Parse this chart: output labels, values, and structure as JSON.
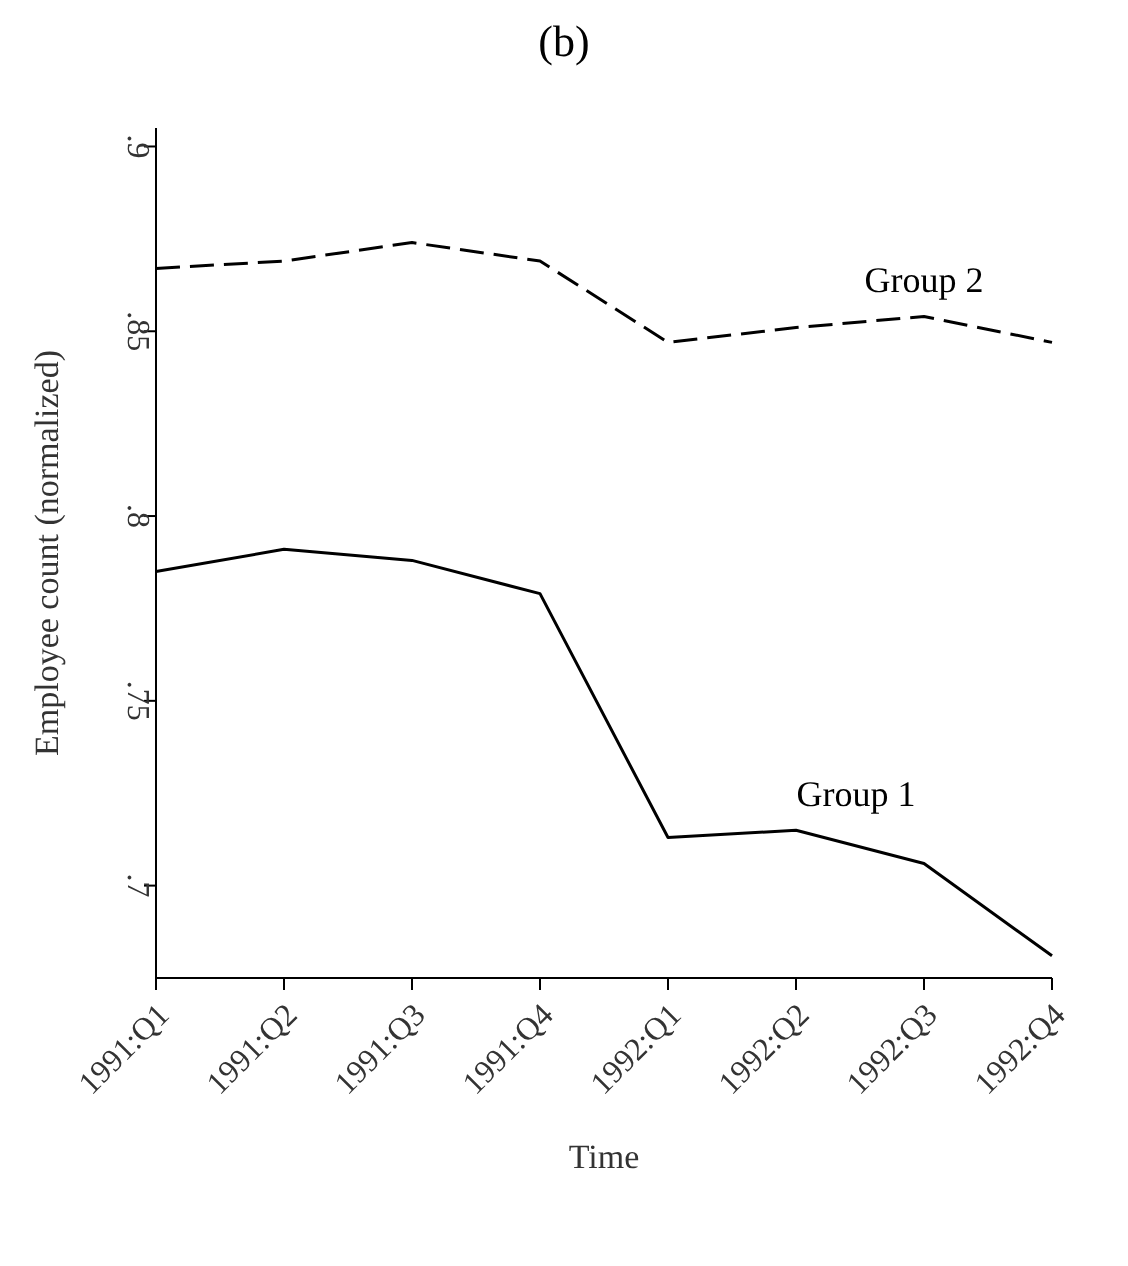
{
  "chart_data": {
    "type": "line",
    "title": "(b)",
    "xlabel": "Time",
    "ylabel": "Employee count (normalized)",
    "categories": [
      "1991:Q1",
      "1991:Q2",
      "1991:Q3",
      "1991:Q4",
      "1992:Q1",
      "1992:Q2",
      "1992:Q3",
      "1992:Q4"
    ],
    "series": [
      {
        "name": "Group 2",
        "color": "#000000",
        "line_style": "dashed",
        "values": [
          0.867,
          0.869,
          0.874,
          0.869,
          0.847,
          0.851,
          0.854,
          0.847
        ]
      },
      {
        "name": "Group 1",
        "color": "#000000",
        "line_style": "solid",
        "values": [
          0.785,
          0.791,
          0.788,
          0.779,
          0.713,
          0.715,
          0.706,
          0.681
        ]
      }
    ],
    "ylim": [
      0.675,
      0.905
    ],
    "yticks": [
      {
        "value": 0.7,
        "label": ".7"
      },
      {
        "value": 0.75,
        "label": ".75"
      },
      {
        "value": 0.8,
        "label": ".8"
      },
      {
        "value": 0.85,
        "label": ".85"
      },
      {
        "value": 0.9,
        "label": ".9"
      }
    ],
    "grid": false,
    "legend": false,
    "marker": "none"
  }
}
